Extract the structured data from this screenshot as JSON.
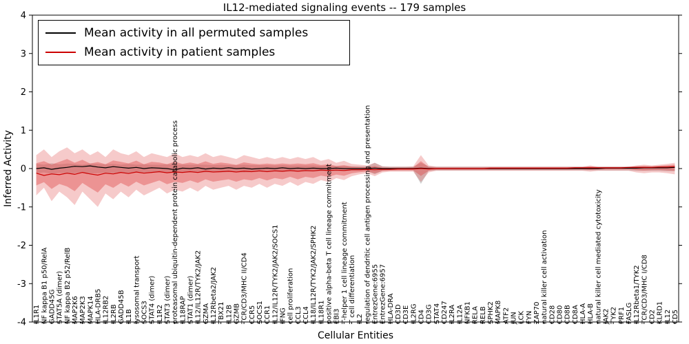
{
  "chart_data": {
    "type": "line",
    "title": "IL12-mediated signaling events -- 179 samples",
    "xlabel": "Cellular Entities",
    "ylabel": "Inferred Activity",
    "ylim": [
      -4,
      4
    ],
    "yticks": [
      -4,
      -3,
      -2,
      -1,
      0,
      1,
      2,
      3,
      4
    ],
    "grid": false,
    "legend_position": "upper left",
    "legend": [
      {
        "label": "Mean activity in all permuted samples",
        "color": "#000000"
      },
      {
        "label": "Mean activity in patient samples",
        "color": "#cc0000"
      }
    ],
    "colors": {
      "permuted_line": "#000000",
      "patient_line": "#cc0000",
      "patient_band": "#e05050",
      "permuted_band": "#999999"
    },
    "categories": [
      "IL1R1",
      "NF kappa B1 p50/RelA",
      "GADD45G",
      "STAT5A (dimer)",
      "NF kappa B2 p52/RelB",
      "MAP2K6",
      "MAP2K3",
      "MAPK14",
      "HLA-DRB5",
      "IL12RB2",
      "IL2RB",
      "GADD45B",
      "IL1B",
      "lysosomal transport",
      "SOCS3",
      "STAT4 (dimer)",
      "IL1R2",
      "STAT3 (dimer)",
      "proteasomal ubiquitin-dependent protein catabolic process",
      "IL18RAP",
      "STAT1 (dimer)",
      "IL12/IL12R/TYK2/JAK2",
      "GZMA",
      "IL12Rbeta2/JAK2",
      "TBX21",
      "IL12B",
      "GZMB",
      "TCR/CD3/MHC II/CD4",
      "CCR5",
      "SOCS1",
      "CCR1",
      "IL12/IL12R/TYK2/JAK2/SOCS1",
      "IFNG",
      "cell proliferation",
      "CCL3",
      "CCL4",
      "IL18/IL12R/TYK2/JAK2/SPHK2",
      "IL18R1",
      "positive alpha-beta T cell lineage commitment",
      "EBI3",
      "T-helper 1 cell lineage commitment",
      "T cell differentiation",
      "IL2",
      "regulation of dendritic cell antigen processing and presentation",
      "EntrezGene:6955",
      "EntrezGene:6957",
      "HLA-DRA",
      "CD3D",
      "CD3E",
      "IL2RG",
      "CD4",
      "CD3G",
      "STAT4",
      "CD247",
      "IL2RA",
      "IL12A",
      "NFKB1",
      "RELA",
      "RELB",
      "SPHK2",
      "MAPK8",
      "ATF2",
      "JUN",
      "LCK",
      "FYN",
      "ZAP70",
      "natural killer cell activation",
      "CD28",
      "CD80",
      "CD8B",
      "CD8A",
      "HLA-A",
      "HLA-B",
      "natural killer cell mediated cytotoxicity",
      "JAK2",
      "TYK2",
      "PRF1",
      "FASLG",
      "IL12Rbeta1/TYK2",
      "TCR/CD3/MHC I/CD8",
      "CD2",
      "KLRD1",
      "IL12",
      "CD5"
    ],
    "series": [
      {
        "name": "Mean activity in all permuted samples",
        "values": [
          0.0,
          0.02,
          -0.02,
          0.01,
          0.03,
          0.06,
          0.05,
          0.07,
          0.04,
          0.02,
          0.05,
          0.03,
          0.01,
          0.03,
          0.0,
          0.02,
          0.01,
          0.0,
          -0.03,
          0.01,
          0.0,
          0.02,
          -0.01,
          0.01,
          0.0,
          0.02,
          0.0,
          0.01,
          -0.01,
          0.0,
          0.01,
          0.0,
          0.02,
          0.0,
          0.01,
          0.0,
          0.01,
          0.0,
          0.0,
          0.01,
          0.0,
          0.0,
          0.0,
          0.0,
          0.01,
          0.0,
          0.0,
          0.0,
          0.0,
          0.0,
          0.01,
          0.0,
          0.0,
          0.0,
          0.0,
          0.0,
          0.0,
          0.0,
          0.0,
          0.0,
          0.0,
          0.0,
          0.0,
          0.0,
          0.0,
          0.0,
          0.0,
          0.0,
          0.0,
          0.0,
          0.0,
          0.0,
          0.0,
          0.0,
          0.01,
          0.01,
          0.01,
          0.01,
          0.01,
          0.02,
          0.02,
          0.02,
          0.02,
          0.03
        ]
      },
      {
        "name": "Mean activity in patient samples",
        "values": [
          -0.12,
          -0.18,
          -0.14,
          -0.16,
          -0.12,
          -0.15,
          -0.1,
          -0.14,
          -0.17,
          -0.12,
          -0.14,
          -0.1,
          -0.13,
          -0.09,
          -0.12,
          -0.1,
          -0.08,
          -0.11,
          -0.09,
          -0.1,
          -0.08,
          -0.1,
          -0.07,
          -0.09,
          -0.08,
          -0.07,
          -0.09,
          -0.07,
          -0.08,
          -0.06,
          -0.08,
          -0.06,
          -0.07,
          -0.05,
          -0.07,
          -0.05,
          -0.06,
          -0.04,
          -0.05,
          -0.04,
          -0.05,
          -0.03,
          -0.03,
          -0.02,
          -0.03,
          -0.02,
          -0.02,
          -0.01,
          -0.01,
          -0.01,
          0.0,
          -0.01,
          0.0,
          0.0,
          0.0,
          0.0,
          0.0,
          0.0,
          0.0,
          0.01,
          0.01,
          0.01,
          0.01,
          0.01,
          0.01,
          0.01,
          0.01,
          0.01,
          0.01,
          0.01,
          0.02,
          0.02,
          0.02,
          0.02,
          0.02,
          0.02,
          0.02,
          0.03,
          0.03,
          0.03,
          0.03,
          0.04,
          0.04,
          0.05
        ]
      }
    ],
    "patient_band_hi": [
      0.35,
      0.5,
      0.3,
      0.45,
      0.55,
      0.4,
      0.5,
      0.35,
      0.45,
      0.3,
      0.5,
      0.4,
      0.35,
      0.45,
      0.3,
      0.4,
      0.35,
      0.3,
      0.4,
      0.3,
      0.35,
      0.3,
      0.4,
      0.3,
      0.35,
      0.3,
      0.25,
      0.35,
      0.3,
      0.25,
      0.3,
      0.25,
      0.3,
      0.25,
      0.3,
      0.25,
      0.3,
      0.2,
      0.25,
      0.15,
      0.2,
      0.12,
      0.1,
      0.08,
      0.15,
      0.06,
      0.05,
      0.05,
      0.05,
      0.06,
      0.35,
      0.08,
      0.05,
      0.05,
      0.05,
      0.05,
      0.05,
      0.05,
      0.05,
      0.05,
      0.05,
      0.05,
      0.05,
      0.05,
      0.05,
      0.05,
      0.05,
      0.05,
      0.05,
      0.05,
      0.05,
      0.05,
      0.08,
      0.05,
      0.05,
      0.05,
      0.05,
      0.05,
      0.08,
      0.1,
      0.08,
      0.1,
      0.12,
      0.15
    ],
    "patient_band_lo": [
      -0.7,
      -0.5,
      -0.85,
      -0.6,
      -0.75,
      -0.95,
      -0.6,
      -0.8,
      -1.0,
      -0.65,
      -0.8,
      -0.6,
      -0.75,
      -0.55,
      -0.7,
      -0.6,
      -0.5,
      -0.65,
      -0.55,
      -0.6,
      -0.5,
      -0.6,
      -0.45,
      -0.55,
      -0.5,
      -0.45,
      -0.55,
      -0.45,
      -0.5,
      -0.4,
      -0.5,
      -0.4,
      -0.45,
      -0.35,
      -0.45,
      -0.35,
      -0.4,
      -0.3,
      -0.35,
      -0.25,
      -0.3,
      -0.2,
      -0.15,
      -0.12,
      -0.2,
      -0.1,
      -0.08,
      -0.08,
      -0.08,
      -0.08,
      -0.35,
      -0.1,
      -0.06,
      -0.06,
      -0.06,
      -0.06,
      -0.06,
      -0.06,
      -0.06,
      -0.06,
      -0.06,
      -0.06,
      -0.06,
      -0.06,
      -0.06,
      -0.06,
      -0.06,
      -0.06,
      -0.06,
      -0.06,
      -0.06,
      -0.06,
      -0.08,
      -0.06,
      -0.06,
      -0.06,
      -0.06,
      -0.06,
      -0.1,
      -0.12,
      -0.1,
      -0.1,
      -0.12,
      -0.15
    ],
    "permuted_band_hi": [
      0.12,
      0.1,
      0.14,
      0.11,
      0.13,
      0.12,
      0.1,
      0.13,
      0.12,
      0.11,
      0.12,
      0.1,
      0.12,
      0.1,
      0.11,
      0.1,
      0.1,
      0.11,
      0.1,
      0.1,
      0.1,
      0.1,
      0.1,
      0.09,
      0.1,
      0.09,
      0.09,
      0.1,
      0.09,
      0.09,
      0.09,
      0.08,
      0.09,
      0.08,
      0.08,
      0.08,
      0.08,
      0.07,
      0.07,
      0.07,
      0.07,
      0.06,
      0.06,
      0.06,
      0.15,
      0.06,
      0.05,
      0.05,
      0.05,
      0.05,
      0.15,
      0.06,
      0.05,
      0.05,
      0.05,
      0.05,
      0.05,
      0.05,
      0.05,
      0.05,
      0.05,
      0.05,
      0.05,
      0.05,
      0.05,
      0.05,
      0.05,
      0.05,
      0.05,
      0.05,
      0.05,
      0.05,
      0.05,
      0.05,
      0.05,
      0.05,
      0.05,
      0.05,
      0.06,
      0.06,
      0.06,
      0.06,
      0.07,
      0.07
    ],
    "permuted_band_lo": [
      -0.12,
      -0.1,
      -0.14,
      -0.11,
      -0.13,
      -0.12,
      -0.1,
      -0.13,
      -0.12,
      -0.11,
      -0.12,
      -0.1,
      -0.12,
      -0.1,
      -0.11,
      -0.1,
      -0.1,
      -0.11,
      -0.1,
      -0.1,
      -0.1,
      -0.1,
      -0.1,
      -0.09,
      -0.1,
      -0.09,
      -0.09,
      -0.1,
      -0.09,
      -0.09,
      -0.09,
      -0.08,
      -0.09,
      -0.08,
      -0.08,
      -0.08,
      -0.08,
      -0.07,
      -0.07,
      -0.07,
      -0.07,
      -0.06,
      -0.06,
      -0.06,
      -0.15,
      -0.06,
      -0.05,
      -0.05,
      -0.05,
      -0.05,
      -0.4,
      -0.06,
      -0.05,
      -0.05,
      -0.05,
      -0.05,
      -0.05,
      -0.05,
      -0.05,
      -0.05,
      -0.05,
      -0.05,
      -0.05,
      -0.05,
      -0.05,
      -0.05,
      -0.05,
      -0.05,
      -0.05,
      -0.05,
      -0.05,
      -0.05,
      -0.05,
      -0.05,
      -0.05,
      -0.05,
      -0.05,
      -0.05,
      -0.06,
      -0.06,
      -0.06,
      -0.06,
      -0.07,
      -0.07
    ]
  }
}
